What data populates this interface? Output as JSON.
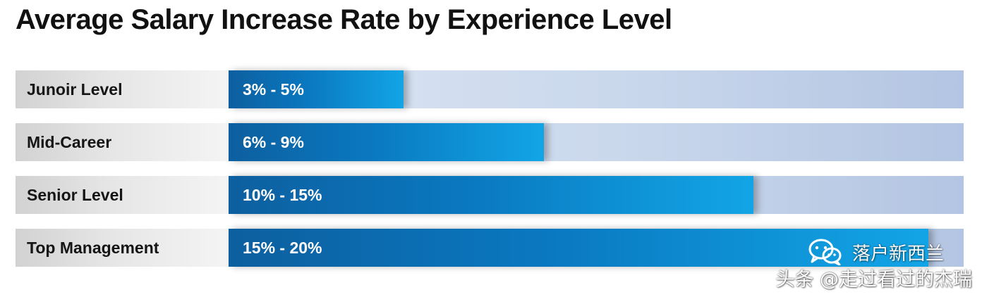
{
  "chart_data": {
    "type": "bar",
    "orientation": "horizontal",
    "title": "Average Salary Increase Rate by Experience Level",
    "categories": [
      "Junoir Level",
      "Mid-Career",
      "Senior Level",
      "Top Management"
    ],
    "value_labels": [
      "3% - 5%",
      "6% - 9%",
      "10% - 15%",
      "15% - 20%"
    ],
    "ranges": [
      [
        3,
        5
      ],
      [
        6,
        9
      ],
      [
        10,
        15
      ],
      [
        15,
        20
      ]
    ],
    "values": [
      5,
      9,
      15,
      20
    ],
    "xlim": [
      0,
      21
    ],
    "grid": false,
    "legend": "none"
  },
  "colors": {
    "bar_dark": "#0d5f9f",
    "bar_light": "#12a5e6",
    "track": "#c9d7ec",
    "label_background": "#e0e0e0",
    "title": "#111111"
  },
  "watermark": {
    "icon": "wechat-icon",
    "account": "落户新西兰",
    "author": "头条 @走过看过的杰瑞"
  }
}
